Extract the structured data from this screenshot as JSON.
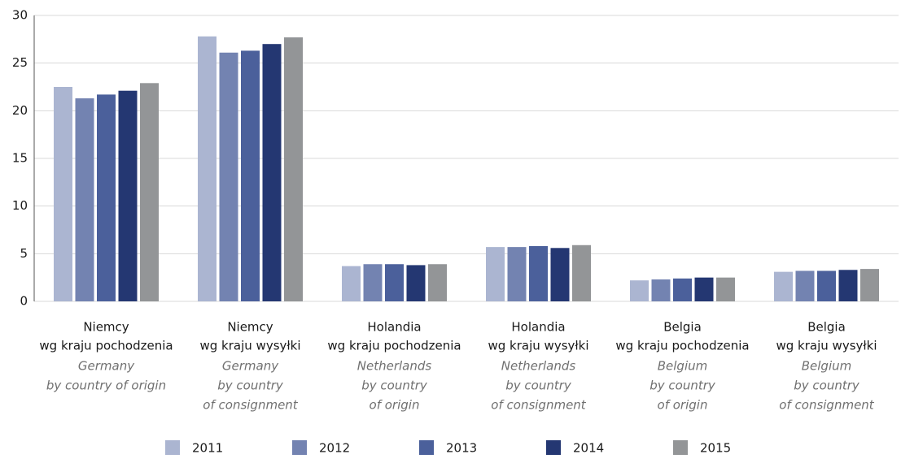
{
  "chart_data": {
    "type": "bar",
    "categories": [
      {
        "pl": [
          "Niemcy",
          "wg kraju pochodzenia"
        ],
        "en": [
          "Germany",
          "by country of origin"
        ]
      },
      {
        "pl": [
          "Niemcy",
          "wg kraju wysyłki"
        ],
        "en": [
          "Germany",
          "by country",
          "of consignment"
        ]
      },
      {
        "pl": [
          "Holandia",
          "wg kraju pochodzenia"
        ],
        "en": [
          "Netherlands",
          "by country",
          "of origin"
        ]
      },
      {
        "pl": [
          "Holandia",
          "wg kraju wysyłki"
        ],
        "en": [
          "Netherlands",
          "by country",
          "of consignment"
        ]
      },
      {
        "pl": [
          "Belgia",
          "wg kraju pochodzenia"
        ],
        "en": [
          "Belgium",
          "by country",
          "of origin"
        ]
      },
      {
        "pl": [
          "Belgia",
          "wg kraju wysyłki"
        ],
        "en": [
          "Belgium",
          "by country",
          "of consignment"
        ]
      }
    ],
    "series": [
      {
        "name": "2011",
        "color": "#abb5d1",
        "values": [
          22.5,
          27.8,
          3.7,
          5.7,
          2.2,
          3.1
        ]
      },
      {
        "name": "2012",
        "color": "#7383b1",
        "values": [
          21.3,
          26.1,
          3.9,
          5.7,
          2.3,
          3.2
        ]
      },
      {
        "name": "2013",
        "color": "#4b609b",
        "values": [
          21.7,
          26.3,
          3.9,
          5.8,
          2.4,
          3.2
        ]
      },
      {
        "name": "2014",
        "color": "#243772",
        "values": [
          22.1,
          27.0,
          3.8,
          5.6,
          2.5,
          3.3
        ]
      },
      {
        "name": "2015",
        "color": "#939597",
        "values": [
          22.9,
          27.7,
          3.9,
          5.9,
          2.5,
          3.4
        ]
      }
    ],
    "ylim": [
      0,
      30
    ],
    "yticks": [
      0,
      5,
      10,
      15,
      20,
      25,
      30
    ],
    "grid": true,
    "legend": "bottom"
  }
}
